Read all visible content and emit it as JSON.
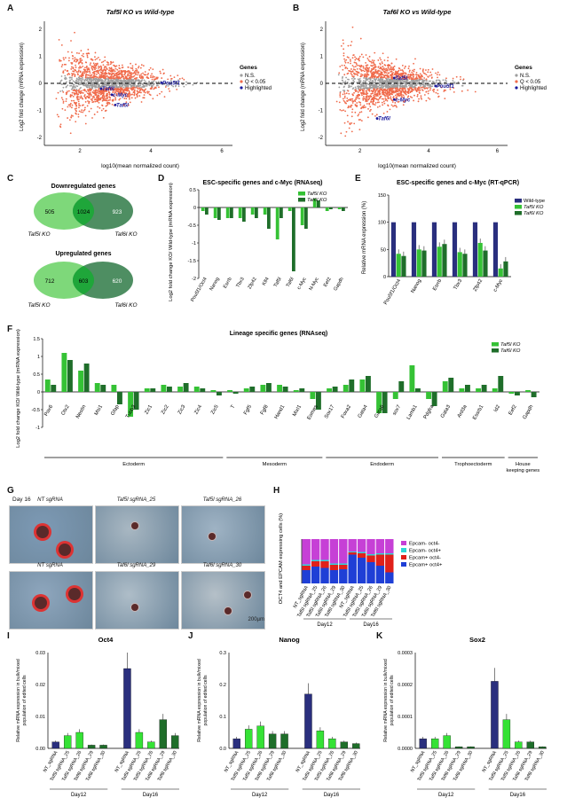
{
  "panels": {
    "A": {
      "label": "A",
      "title": "Taf5l KO vs Wild-type",
      "xlabel": "log10(mean normalized count)",
      "ylabel": "Log2 fold change (mRNA expression)",
      "xticks": [
        "2",
        "4",
        "6"
      ],
      "yticks": [
        "2",
        "1",
        "0",
        "-1",
        "-2"
      ],
      "legend": {
        "title": "Genes",
        "items": [
          "N.S.",
          "Q < 0.05",
          "Highlighted"
        ]
      },
      "genes": [
        {
          "name": "Pou5f1",
          "x": 4.3,
          "y": 0.02
        },
        {
          "name": "Taf6l",
          "x": 2.6,
          "y": -0.2
        },
        {
          "name": "c-Myc",
          "x": 2.9,
          "y": -0.42
        },
        {
          "name": "Taf5l",
          "x": 3.0,
          "y": -0.8
        }
      ]
    },
    "B": {
      "label": "B",
      "title": "Taf6l KO vs Wild-type",
      "xlabel": "log10(mean normalized count)",
      "ylabel": "Log2 fold change (mRNA expression)",
      "xticks": [
        "2",
        "4",
        "6"
      ],
      "yticks": [
        "2",
        "1",
        "0",
        "-1",
        "-2"
      ],
      "legend": {
        "title": "Genes",
        "items": [
          "N.S.",
          "Q < 0.05",
          "Highlighted"
        ]
      },
      "genes": [
        {
          "name": "Taf5l",
          "x": 3.0,
          "y": 0.2
        },
        {
          "name": "Pou5f1",
          "x": 4.2,
          "y": -0.1
        },
        {
          "name": "c-Myc",
          "x": 3.0,
          "y": -0.6
        },
        {
          "name": "Taf6l",
          "x": 2.5,
          "y": -1.3
        }
      ]
    },
    "C": {
      "label": "C",
      "down_title": "Downregulated genes",
      "up_title": "Upregulated genes",
      "down": {
        "left": "505",
        "mid": "1024",
        "right": "923"
      },
      "up": {
        "left": "712",
        "mid": "603",
        "right": "620"
      },
      "left_name": "Taf5l KO",
      "right_name": "Taf6l KO"
    },
    "D": {
      "label": "D",
      "title": "ESC-specific genes and c-Myc (RNAseq)",
      "ylabel": "Log2 fold change KO/ Wild-type (mRNA expression)"
    },
    "E": {
      "label": "E",
      "title": "ESC-specific genes and c-Myc (RT-qPCR)",
      "ylabel": "Relative mRNA expression (%)",
      "legend": [
        "Wild-type",
        "Taf5l KO",
        "Taf6l KO"
      ]
    },
    "F": {
      "label": "F",
      "title": "Lineage specific genes (RNAseq)",
      "ylabel": "Log2 fold change KO/ Wild-type (mRNA expression)",
      "groups": [
        "Ectoderm",
        "Mesoderm",
        "Endoderm",
        "Trophoectoderm",
        "House keeping genes"
      ]
    },
    "G": {
      "label": "G",
      "day": "Day 16",
      "images": [
        "NT sgRNA",
        "Taf5l sgRNA_25",
        "Taf5l sgRNA_26",
        "NT sgRNA",
        "Taf6l sgRNA_29",
        "Taf6l sgRNA_30"
      ],
      "scale": "200µm"
    },
    "H": {
      "label": "H",
      "ylabel": "OCT4 and EPCAM expressing cells (%)",
      "legend": [
        "Epcam- oct4-",
        "Epcam- oct4+",
        "Epcam+ oct4-",
        "Epcam+ oct4+"
      ],
      "samples": [
        "NT_sgRNA",
        "Taf5l sgRNA_25",
        "Taf5l sgRNA_26",
        "Taf6l sgRNA_29",
        "Taf6l sgRNA_30",
        "NT_sgRNA",
        "Taf5l sgRNA_25",
        "Taf5l sgRNA_26",
        "Taf6l sgRNA_29",
        "Taf6l sgRNA_30"
      ],
      "days": [
        "Day12",
        "Day16"
      ]
    },
    "I": {
      "label": "I",
      "title": "Oct4",
      "ylabel": "Relative mRNA expression in bulk/mixed population of edited cells",
      "yticks": [
        "0.03",
        "0.02",
        "0.01",
        "0.00"
      ]
    },
    "J": {
      "label": "J",
      "title": "Nanog",
      "ylabel": "Relative mRNA expression in bulk/mixed population of edited cells",
      "yticks": [
        "0.3",
        "0.2",
        "0.1",
        "0.0"
      ]
    },
    "K": {
      "label": "K",
      "title": "Sox2",
      "ylabel": "Relative mRNA expression in bulk/mixed population of edited cells",
      "yticks": [
        "0.0003",
        "0.0002",
        "0.0001",
        "0.0000"
      ]
    }
  },
  "chart_data": [
    {
      "id": "D",
      "type": "bar",
      "categories": [
        "Pou5f1/Oct4",
        "Nanog",
        "Esrrb",
        "Tbx3",
        "Zfp42",
        "Klf4",
        "Taf5l",
        "Taf6l",
        "c-Myc",
        "N-Myc",
        "Eef2",
        "Gapdh"
      ],
      "series": [
        {
          "name": "Taf5l KO",
          "color": "#35c235",
          "values": [
            -0.1,
            -0.3,
            -0.3,
            -0.3,
            -0.2,
            -0.2,
            -0.9,
            -0.1,
            -0.5,
            0.25,
            -0.1,
            -0.05
          ]
        },
        {
          "name": "Taf6l KO",
          "color": "#1f6e2a",
          "values": [
            -0.2,
            -0.35,
            -0.3,
            -0.4,
            -0.3,
            -0.6,
            -0.3,
            -1.8,
            -0.6,
            0.2,
            -0.05,
            -0.1
          ]
        }
      ],
      "ylim": [
        -2,
        0.5
      ],
      "yticks": [
        0.5,
        0,
        -0.5,
        -1,
        -1.5,
        -2
      ]
    },
    {
      "id": "E",
      "type": "bar",
      "categories": [
        "Pou5f1/Oct4",
        "Nanog",
        "Esrrb",
        "Tbx3",
        "Zfp42",
        "c-Myc"
      ],
      "series": [
        {
          "name": "Wild-type",
          "color": "#2a2f7e",
          "values": [
            100,
            100,
            100,
            100,
            100,
            100
          ]
        },
        {
          "name": "Taf5l KO",
          "color": "#35c235",
          "values": [
            42,
            50,
            55,
            45,
            62,
            15
          ]
        },
        {
          "name": "Taf6l KO",
          "color": "#1f6e2a",
          "values": [
            38,
            48,
            60,
            42,
            48,
            28
          ]
        }
      ],
      "ylim": [
        0,
        150
      ],
      "yticks": [
        150,
        100,
        50,
        0
      ]
    },
    {
      "id": "F",
      "type": "bar",
      "categories": [
        "Pax6",
        "Otx2",
        "Nestin",
        "Msi1",
        "Gfap",
        "Tubb3",
        "Zic1",
        "Zic2",
        "Zic3",
        "Zic4",
        "Zic5",
        "T",
        "Fgf5",
        "Fgf8",
        "Hand1",
        "Mixl1",
        "Eomes",
        "Sox17",
        "Foxa2",
        "Gata4",
        "Gata6",
        "sox7",
        "Lamb1",
        "Pdgfra",
        "Gata3",
        "Ard3a",
        "Essrb1",
        "Id2",
        "Eef2",
        "Gapdh"
      ],
      "series": [
        {
          "name": "Taf5l KO",
          "color": "#35c235",
          "values": [
            0.35,
            1.1,
            0.6,
            0.25,
            0.2,
            -0.7,
            0.1,
            0.2,
            0.15,
            0.15,
            0.05,
            0.05,
            0.1,
            0.2,
            0.2,
            0.05,
            -0.2,
            0.1,
            0.2,
            0.35,
            -0.6,
            -0.2,
            0.75,
            -0.2,
            0.3,
            0.1,
            0.1,
            0.1,
            -0.05,
            0.05
          ],
          "group": [
            0,
            0,
            0,
            0,
            0,
            0,
            0,
            0,
            0,
            0,
            0,
            1,
            1,
            1,
            1,
            1,
            1,
            2,
            2,
            2,
            2,
            2,
            2,
            2,
            3,
            3,
            3,
            3,
            4,
            4
          ]
        },
        {
          "name": "Taf6l KO",
          "color": "#1f6e2a",
          "values": [
            0.2,
            0.9,
            0.8,
            0.2,
            -0.35,
            -0.5,
            0.1,
            0.15,
            0.25,
            0.1,
            -0.1,
            -0.05,
            0.15,
            0.25,
            0.15,
            0.1,
            -0.5,
            0.15,
            0.35,
            0.45,
            -0.6,
            0.3,
            0.1,
            -0.4,
            0.4,
            0.2,
            0.2,
            0.45,
            -0.1,
            -0.15
          ]
        }
      ],
      "ylim": [
        -1,
        1.5
      ],
      "yticks": [
        1.5,
        1,
        0.5,
        0,
        -0.5,
        -1
      ]
    },
    {
      "id": "H",
      "type": "bar",
      "stacked": true,
      "series": [
        {
          "name": "Epcam+ oct4+",
          "color": "#1f3fd6",
          "values": [
            30,
            38,
            35,
            30,
            32,
            65,
            58,
            48,
            40,
            25
          ]
        },
        {
          "name": "Epcam+ oct4-",
          "color": "#e0201a",
          "values": [
            10,
            12,
            15,
            12,
            10,
            5,
            10,
            15,
            25,
            40
          ]
        },
        {
          "name": "Epcam- oct4+",
          "color": "#2fd6d6",
          "values": [
            3,
            3,
            3,
            3,
            3,
            2,
            3,
            3,
            3,
            3
          ]
        },
        {
          "name": "Epcam- oct4-",
          "color": "#c640d6",
          "values": [
            57,
            47,
            47,
            55,
            55,
            28,
            29,
            34,
            32,
            32
          ]
        }
      ],
      "ylim": [
        0,
        100
      ]
    },
    {
      "id": "I",
      "type": "bar",
      "categories": [
        "NT_sgRNA",
        "Taf5l sgRNA_25",
        "Taf5l sgRNA_26",
        "Taf6l sgRNA_29",
        "Taf6l sgRNA_30",
        "NT_sgRNA",
        "Taf5l sgRNA_25",
        "Taf5l sgRNA_26",
        "Taf6l sgRNA_29",
        "Taf6l sgRNA_30"
      ],
      "values": [
        0.002,
        0.004,
        0.005,
        0.001,
        0.001,
        0.025,
        0.005,
        0.002,
        0.009,
        0.004
      ],
      "ylim": [
        0,
        0.03
      ]
    },
    {
      "id": "J",
      "type": "bar",
      "categories": [
        "NT_sgRNA",
        "Taf5l sgRNA_25",
        "Taf5l sgRNA_26",
        "Taf6l sgRNA_29",
        "Taf6l sgRNA_30",
        "NT_sgRNA",
        "Taf5l sgRNA_25",
        "Taf5l sgRNA_26",
        "Taf6l sgRNA_29",
        "Taf6l sgRNA_30"
      ],
      "values": [
        0.03,
        0.06,
        0.07,
        0.045,
        0.045,
        0.17,
        0.055,
        0.03,
        0.02,
        0.015
      ],
      "ylim": [
        0,
        0.3
      ]
    },
    {
      "id": "K",
      "type": "bar",
      "categories": [
        "NT_sgRNA",
        "Taf5l sgRNA_25",
        "Taf5l sgRNA_26",
        "Taf6l sgRNA_29",
        "Taf6l sgRNA_30",
        "NT_sgRNA",
        "Taf5l sgRNA_25",
        "Taf5l sgRNA_26",
        "Taf6l sgRNA_29",
        "Taf6l sgRNA_30"
      ],
      "values": [
        3e-05,
        3e-05,
        4e-05,
        5e-06,
        5e-06,
        0.00021,
        9e-05,
        2e-05,
        2e-05,
        5e-06
      ],
      "ylim": [
        0,
        0.0003
      ]
    }
  ],
  "colors": {
    "ns": "#9e9e9e",
    "sig": "#f06a4a",
    "highlight": "#1a1a9e",
    "taf5l": "#35c235",
    "taf6l": "#1f6e2a",
    "wt": "#2a2f7e"
  }
}
